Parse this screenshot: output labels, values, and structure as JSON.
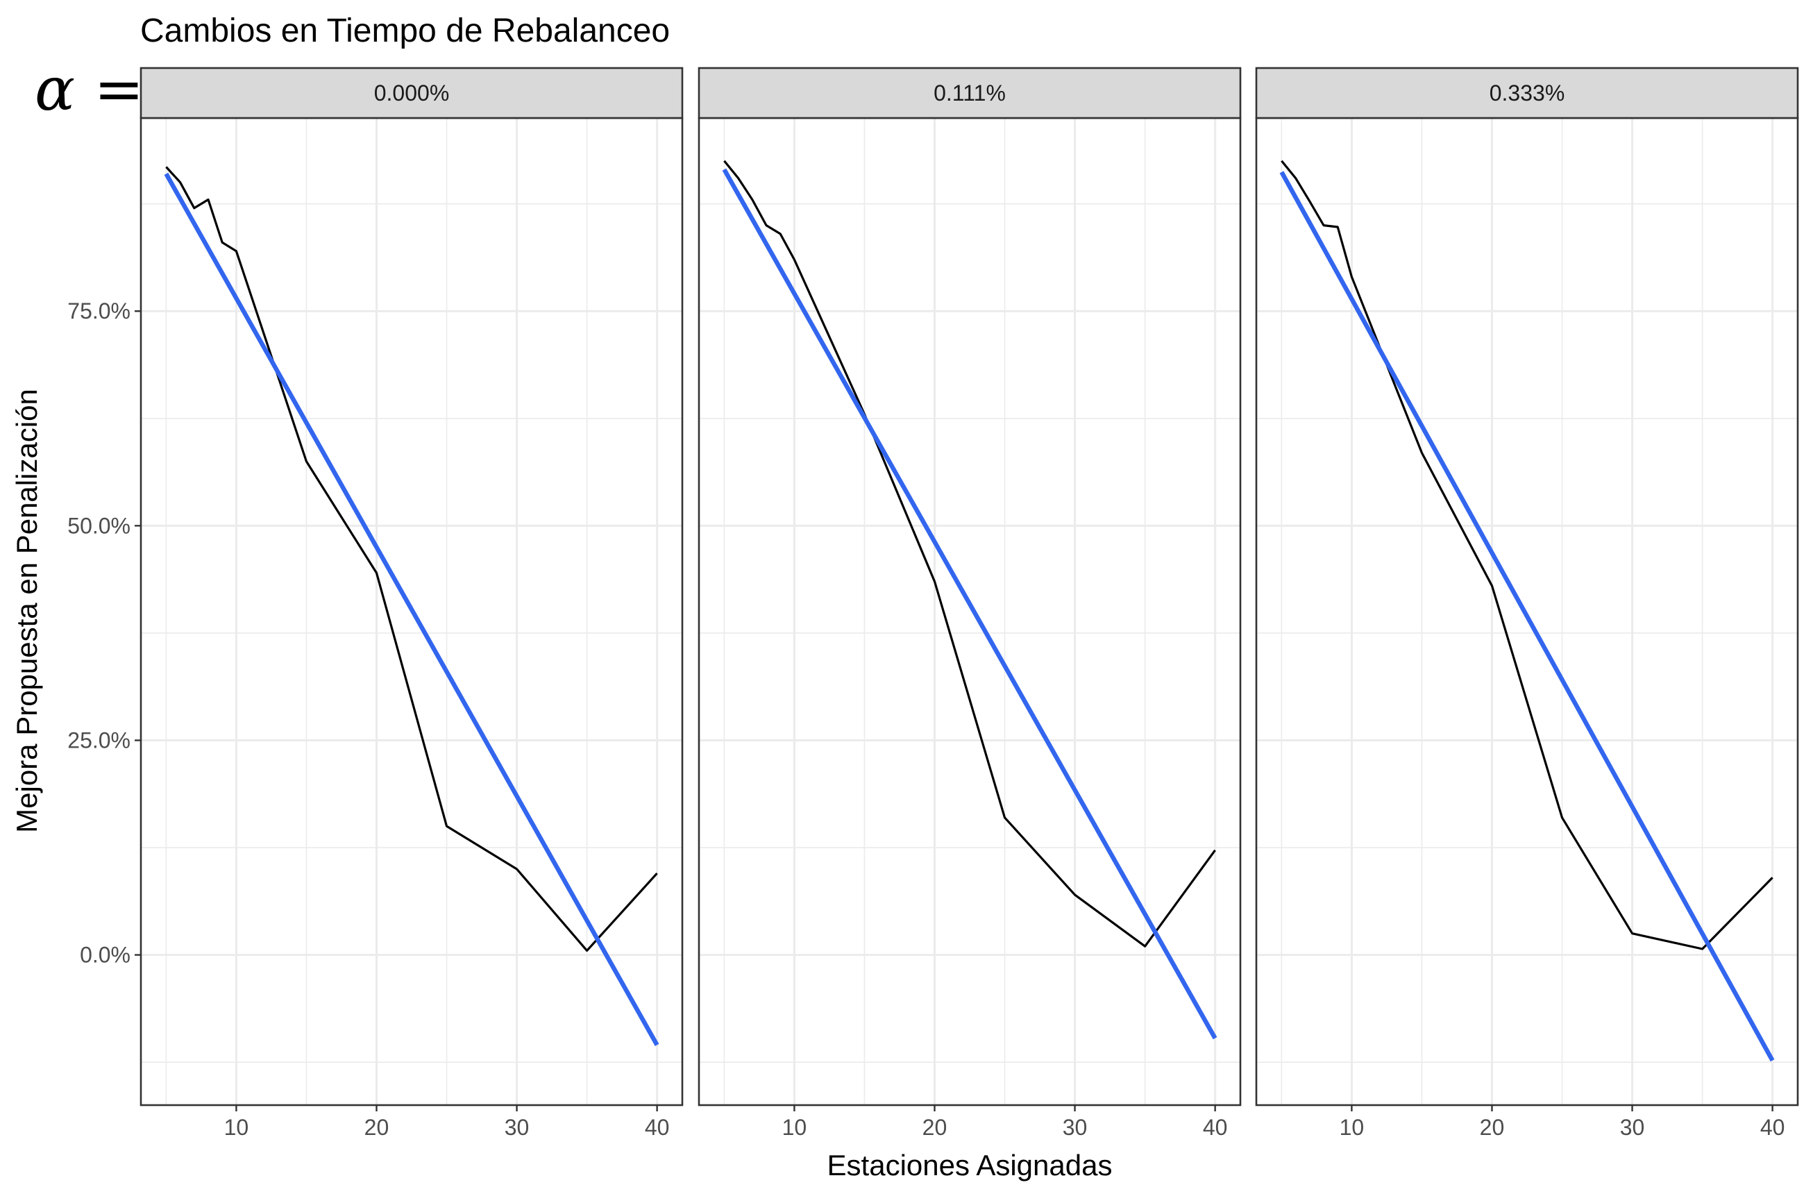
{
  "chart_data": {
    "type": "line",
    "title": "Cambios en Tiempo de Rebalanceo",
    "facet_prefix": "α =",
    "xlabel": "Estaciones Asignadas",
    "ylabel": "Mejora Propuesta en Penalización",
    "xlim": [
      3.2,
      41.8
    ],
    "ylim": [
      -0.175,
      0.975
    ],
    "x_ticks": [
      10,
      20,
      30,
      40
    ],
    "x_tick_labels": [
      "10",
      "20",
      "30",
      "40"
    ],
    "y_ticks": [
      0.0,
      0.25,
      0.5,
      0.75
    ],
    "y_tick_labels": [
      "0.0%",
      "25.0%",
      "50.0%",
      "75.0%"
    ],
    "grid": true,
    "legend": "none",
    "colors": {
      "observed": "#000000",
      "trend": "#3366ee",
      "strip_fill": "#d9d9d9",
      "grid": "#ebebeb",
      "panel_border": "#333333"
    },
    "panels": [
      {
        "label": "0.000%",
        "observed": {
          "x": [
            5,
            6,
            7,
            8,
            9,
            10,
            15,
            20,
            25,
            30,
            35,
            40
          ],
          "y": [
            0.918,
            0.9,
            0.87,
            0.88,
            0.83,
            0.82,
            0.575,
            0.445,
            0.15,
            0.1,
            0.005,
            0.095
          ]
        },
        "trend": {
          "x": [
            5,
            40
          ],
          "y": [
            0.91,
            -0.105
          ]
        }
      },
      {
        "label": "0.111%",
        "observed": {
          "x": [
            5,
            6,
            7,
            8,
            9,
            10,
            15,
            20,
            25,
            30,
            35,
            40
          ],
          "y": [
            0.925,
            0.905,
            0.88,
            0.85,
            0.84,
            0.81,
            0.63,
            0.435,
            0.16,
            0.07,
            0.01,
            0.122
          ]
        },
        "trend": {
          "x": [
            5,
            40
          ],
          "y": [
            0.915,
            -0.097
          ]
        }
      },
      {
        "label": "0.333%",
        "observed": {
          "x": [
            5,
            6,
            7,
            8,
            9,
            10,
            15,
            20,
            25,
            30,
            35,
            40
          ],
          "y": [
            0.925,
            0.905,
            0.878,
            0.85,
            0.848,
            0.79,
            0.585,
            0.43,
            0.16,
            0.025,
            0.007,
            0.09
          ]
        },
        "trend": {
          "x": [
            5,
            40
          ],
          "y": [
            0.912,
            -0.123
          ]
        }
      }
    ]
  }
}
